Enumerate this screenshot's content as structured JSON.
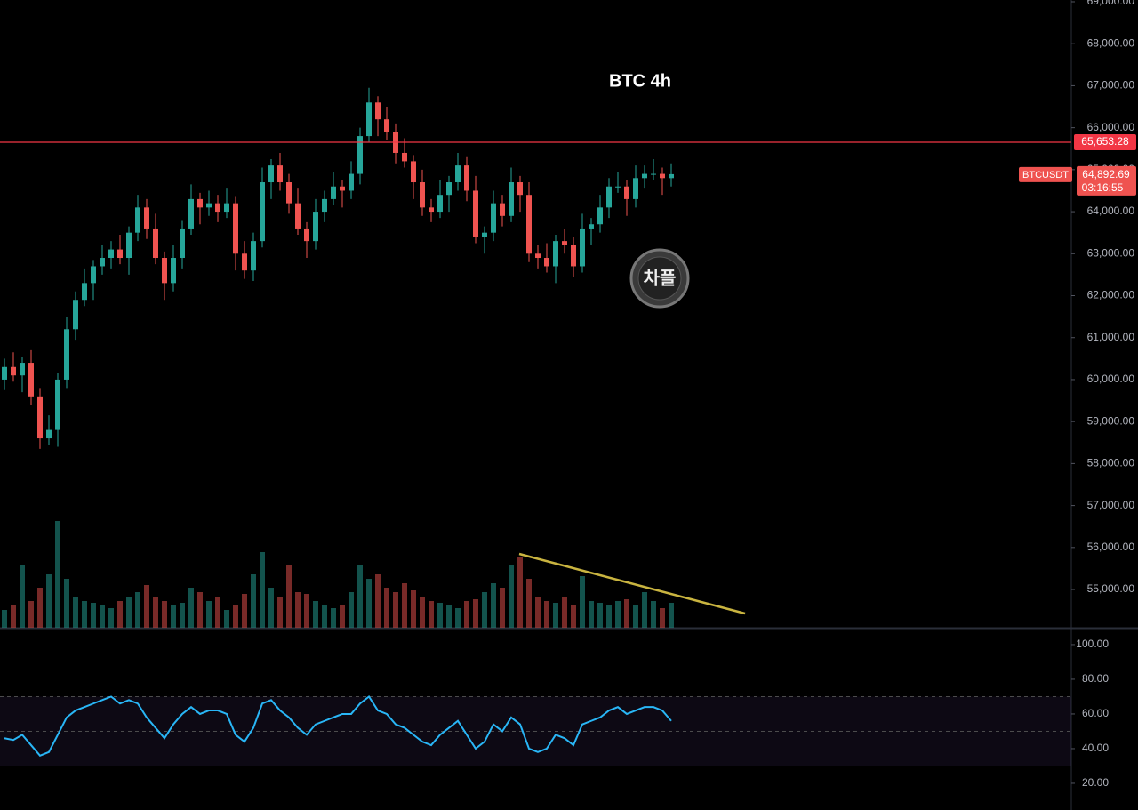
{
  "chart_data": [
    {
      "type": "candlestick",
      "title": "BTC 4h",
      "symbol": "BTCUSDT",
      "countdown": "03:16:55",
      "watermark": "차플",
      "up_color": "#26a69a",
      "down_color": "#ef5350",
      "ylim": [
        54090,
        69042
      ],
      "yticks": [
        {
          "value": 55000,
          "label": "55,000.00"
        },
        {
          "value": 56000,
          "label": "56,000.00"
        },
        {
          "value": 57000,
          "label": "57,000.00"
        },
        {
          "value": 58000,
          "label": "58,000.00"
        },
        {
          "value": 59000,
          "label": "59,000.00"
        },
        {
          "value": 60000,
          "label": "60,000.00"
        },
        {
          "value": 61000,
          "label": "61,000.00"
        },
        {
          "value": 62000,
          "label": "62,000.00"
        },
        {
          "value": 63000,
          "label": "63,000.00"
        },
        {
          "value": 64000,
          "label": "64,000.00"
        },
        {
          "value": 65000,
          "label": "65,000.00"
        },
        {
          "value": 66000,
          "label": "66,000.00"
        },
        {
          "value": 67000,
          "label": "67,000.00"
        },
        {
          "value": 68000,
          "label": "68,000.00"
        },
        {
          "value": 69000,
          "label": "69,000.00"
        }
      ],
      "last_price": {
        "value": 64892.69,
        "label": "64,892.69"
      },
      "reference_line": {
        "value": 65653.28,
        "label": "65,653.28",
        "color": "#f23645"
      },
      "open": [
        60000,
        60300,
        60100,
        60400,
        59600,
        58600,
        58800,
        60000,
        61200,
        61900,
        62300,
        62700,
        62900,
        63100,
        62900,
        63500,
        64100,
        63600,
        62900,
        62300,
        62900,
        63600,
        64300,
        64100,
        64200,
        64000,
        64200,
        63000,
        62600,
        63300,
        64700,
        65100,
        64700,
        64200,
        63600,
        63300,
        64000,
        64300,
        64600,
        64500,
        64900,
        65800,
        66600,
        66200,
        65900,
        65400,
        65200,
        64700,
        64100,
        64000,
        64400,
        64700,
        65100,
        64500,
        63400,
        63500,
        64200,
        63900,
        64700,
        64400,
        63000,
        62900,
        62700,
        63300,
        63200,
        62700,
        63600,
        63700,
        64100,
        64600,
        64600,
        64300,
        64800,
        64900,
        64900,
        64800
      ],
      "high": [
        60500,
        60650,
        60550,
        60700,
        59800,
        59150,
        60150,
        61500,
        62100,
        62650,
        62850,
        63200,
        63300,
        63450,
        63650,
        64400,
        64300,
        63950,
        63050,
        63200,
        63800,
        64650,
        64450,
        64500,
        64400,
        64550,
        64350,
        63300,
        63500,
        65050,
        65250,
        65400,
        64900,
        64550,
        63750,
        64300,
        64500,
        64950,
        64750,
        65200,
        66000,
        66950,
        66750,
        66500,
        66100,
        65750,
        65350,
        65000,
        64300,
        64750,
        64850,
        65400,
        65300,
        64850,
        63650,
        64500,
        64400,
        65050,
        64850,
        64700,
        63200,
        63250,
        63450,
        63600,
        63400,
        63950,
        63850,
        64400,
        64800,
        64950,
        64750,
        65100,
        65100,
        65250,
        65050,
        65150
      ],
      "low": [
        59750,
        59950,
        59700,
        59400,
        58350,
        58450,
        58400,
        59800,
        60950,
        61750,
        61900,
        62500,
        62650,
        62750,
        62500,
        63300,
        63350,
        62750,
        61900,
        62100,
        62650,
        63450,
        63700,
        63900,
        63750,
        63850,
        62600,
        62400,
        62350,
        63150,
        64300,
        64500,
        63950,
        63450,
        62900,
        63100,
        63750,
        64150,
        64100,
        64300,
        64650,
        65650,
        65800,
        65700,
        65150,
        65050,
        64300,
        63900,
        63750,
        63850,
        64000,
        64500,
        64250,
        63250,
        63000,
        63300,
        63650,
        63750,
        64000,
        62800,
        62650,
        62550,
        62300,
        63000,
        62450,
        62550,
        63200,
        63500,
        63850,
        64450,
        63900,
        64100,
        64550,
        64750,
        64400,
        64600
      ],
      "close": [
        60300,
        60100,
        60400,
        59600,
        58600,
        58800,
        60000,
        61200,
        61900,
        62300,
        62700,
        62900,
        63100,
        62900,
        63500,
        64100,
        63600,
        62900,
        62300,
        62900,
        63600,
        64300,
        64100,
        64200,
        64000,
        64200,
        63000,
        62600,
        63300,
        64700,
        65100,
        64700,
        64200,
        63600,
        63300,
        64000,
        64300,
        64600,
        64500,
        64900,
        65800,
        66600,
        66200,
        65900,
        65400,
        65200,
        64700,
        64100,
        64000,
        64400,
        64700,
        65100,
        64500,
        63400,
        63500,
        64200,
        63900,
        64700,
        64400,
        63000,
        62900,
        62700,
        63300,
        63200,
        62700,
        63600,
        63700,
        64100,
        64600,
        64600,
        64300,
        64800,
        64900,
        64900,
        64800,
        64892.69
      ],
      "volume": [
        20,
        25,
        70,
        30,
        45,
        60,
        120,
        55,
        35,
        30,
        28,
        25,
        22,
        30,
        35,
        40,
        48,
        35,
        30,
        25,
        28,
        45,
        40,
        30,
        35,
        20,
        25,
        38,
        60,
        85,
        45,
        35,
        70,
        40,
        38,
        30,
        25,
        22,
        25,
        40,
        70,
        55,
        60,
        45,
        40,
        50,
        42,
        35,
        30,
        28,
        25,
        22,
        30,
        32,
        40,
        50,
        45,
        70,
        80,
        55,
        35,
        30,
        28,
        35,
        25,
        58,
        30,
        28,
        25,
        30,
        32,
        25,
        40,
        30,
        22,
        28
      ]
    },
    {
      "type": "line",
      "color": "#29b6f6",
      "ylim": [
        4.6,
        109.2
      ],
      "yticks": [
        {
          "value": 20,
          "label": "20.00"
        },
        {
          "value": 40,
          "label": "40.00"
        },
        {
          "value": 60,
          "label": "60.00"
        },
        {
          "value": 80,
          "label": "80.00"
        },
        {
          "value": 100,
          "label": "100.00"
        }
      ],
      "band": [
        30,
        70
      ],
      "midline": 50,
      "values": [
        46,
        45,
        48,
        42,
        36,
        38,
        48,
        58,
        62,
        64,
        66,
        68,
        70,
        66,
        68,
        66,
        58,
        52,
        46,
        54,
        60,
        64,
        60,
        62,
        62,
        60,
        48,
        44,
        52,
        66,
        68,
        62,
        58,
        52,
        48,
        54,
        56,
        58,
        60,
        60,
        66,
        70,
        62,
        60,
        54,
        52,
        48,
        44,
        42,
        48,
        52,
        56,
        48,
        40,
        44,
        54,
        50,
        58,
        54,
        40,
        38,
        40,
        48,
        46,
        42,
        54,
        56,
        58,
        62,
        64,
        60,
        62,
        64,
        64,
        62,
        56
      ]
    }
  ]
}
